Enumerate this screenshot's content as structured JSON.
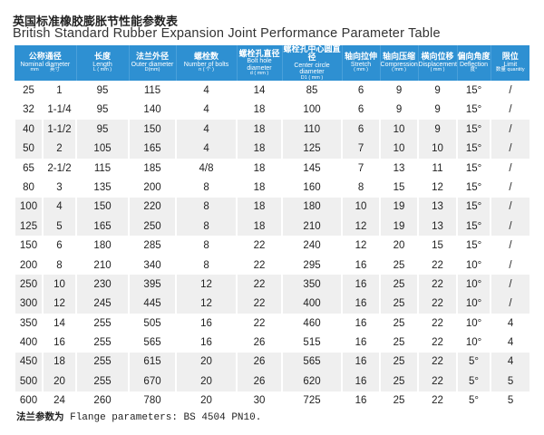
{
  "title_zh": "英国标准橡胶膨胀节性能参数表",
  "title_en": "British Standard Rubber Expansion Joint Performance Parameter Table",
  "header_color": "#2e90d2",
  "headers": [
    {
      "zh": "公称通径",
      "en": "Nominal diameter",
      "unit_a": "mm",
      "unit_b": "英寸"
    },
    {
      "zh": "长度",
      "en": "Length",
      "unit": "L ( mm )"
    },
    {
      "zh": "法兰外径",
      "en": "Outer diameter",
      "unit": "D(mm)"
    },
    {
      "zh": "螺栓数",
      "en": "Number of bolts",
      "unit": "n ( 个 )"
    },
    {
      "zh": "螺栓孔直径",
      "en": "Bolt hole diameter",
      "unit": "d ( mm )"
    },
    {
      "zh": "螺栓孔中心圆直径",
      "en": "Center circle diameter",
      "unit": "D1 ( mm )"
    },
    {
      "zh": "轴向拉伸",
      "en": "Stretch",
      "unit": "( mm )"
    },
    {
      "zh": "轴向压缩",
      "en": "Compression",
      "unit": "( mm )"
    },
    {
      "zh": "横向位移",
      "en": "Displacement",
      "unit": "( mm )"
    },
    {
      "zh": "偏向角度",
      "en": "Deflection",
      "unit": "度°"
    },
    {
      "zh": "限位",
      "en": "Limit",
      "unit": "数量 quantity"
    }
  ],
  "rows": [
    [
      "25",
      "1",
      "95",
      "115",
      "4",
      "14",
      "85",
      "6",
      "9",
      "9",
      "15°",
      "/"
    ],
    [
      "32",
      "1-1/4",
      "95",
      "140",
      "4",
      "18",
      "100",
      "6",
      "9",
      "9",
      "15°",
      "/"
    ],
    [
      "40",
      "1-1/2",
      "95",
      "150",
      "4",
      "18",
      "110",
      "6",
      "10",
      "9",
      "15°",
      "/"
    ],
    [
      "50",
      "2",
      "105",
      "165",
      "4",
      "18",
      "125",
      "7",
      "10",
      "10",
      "15°",
      "/"
    ],
    [
      "65",
      "2-1/2",
      "115",
      "185",
      "4/8",
      "18",
      "145",
      "7",
      "13",
      "11",
      "15°",
      "/"
    ],
    [
      "80",
      "3",
      "135",
      "200",
      "8",
      "18",
      "160",
      "8",
      "15",
      "12",
      "15°",
      "/"
    ],
    [
      "100",
      "4",
      "150",
      "220",
      "8",
      "18",
      "180",
      "10",
      "19",
      "13",
      "15°",
      "/"
    ],
    [
      "125",
      "5",
      "165",
      "250",
      "8",
      "18",
      "210",
      "12",
      "19",
      "13",
      "15°",
      "/"
    ],
    [
      "150",
      "6",
      "180",
      "285",
      "8",
      "22",
      "240",
      "12",
      "20",
      "15",
      "15°",
      "/"
    ],
    [
      "200",
      "8",
      "210",
      "340",
      "8",
      "22",
      "295",
      "16",
      "25",
      "22",
      "10°",
      "/"
    ],
    [
      "250",
      "10",
      "230",
      "395",
      "12",
      "22",
      "350",
      "16",
      "25",
      "22",
      "10°",
      "/"
    ],
    [
      "300",
      "12",
      "245",
      "445",
      "12",
      "22",
      "400",
      "16",
      "25",
      "22",
      "10°",
      "/"
    ],
    [
      "350",
      "14",
      "255",
      "505",
      "16",
      "22",
      "460",
      "16",
      "25",
      "22",
      "10°",
      "4"
    ],
    [
      "400",
      "16",
      "255",
      "565",
      "16",
      "26",
      "515",
      "16",
      "25",
      "22",
      "10°",
      "4"
    ],
    [
      "450",
      "18",
      "255",
      "615",
      "20",
      "26",
      "565",
      "16",
      "25",
      "22",
      "5°",
      "4"
    ],
    [
      "500",
      "20",
      "255",
      "670",
      "20",
      "26",
      "620",
      "16",
      "25",
      "22",
      "5°",
      "5"
    ],
    [
      "600",
      "24",
      "260",
      "780",
      "20",
      "30",
      "725",
      "16",
      "25",
      "22",
      "5°",
      "5"
    ]
  ],
  "footer_zh": "法兰参数为",
  "footer_en": " Flange parameters: BS 4504 PN10."
}
